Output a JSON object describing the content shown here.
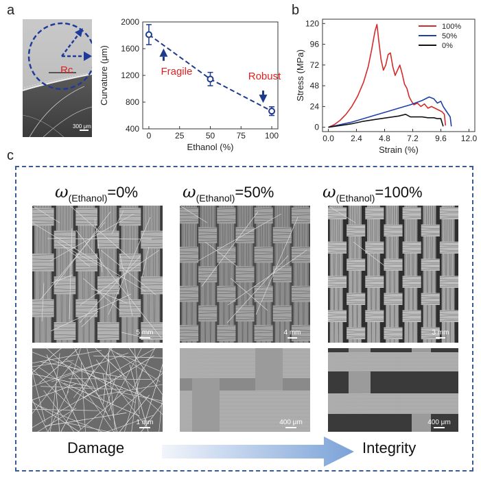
{
  "panels": {
    "a": "a",
    "b": "b",
    "c": "c"
  },
  "micrograph_a": {
    "rc_label": "Rc",
    "scale_bar": "300 μm"
  },
  "chart_data": [
    {
      "type": "scatter",
      "id": "curvature",
      "xlabel": "Ethanol (%)",
      "ylabel": "Curvature (μm)",
      "xlim": [
        -5,
        105
      ],
      "ylim": [
        400,
        2000
      ],
      "xticks": [
        "0",
        "25",
        "50",
        "75",
        "100"
      ],
      "yticks": [
        "400",
        "800",
        "1200",
        "1600",
        "2000"
      ],
      "points": [
        {
          "x": 0,
          "y": 1810,
          "err": 150
        },
        {
          "x": 50,
          "y": 1145,
          "err": 100
        },
        {
          "x": 100,
          "y": 665,
          "err": 65
        }
      ],
      "trend": [
        [
          0,
          1810
        ],
        [
          50,
          1145
        ],
        [
          100,
          665
        ]
      ],
      "annotations": {
        "fragile": "Fragile",
        "robust": "Robust"
      },
      "color": "#1e3a8a"
    },
    {
      "type": "line",
      "id": "stress-strain",
      "xlabel": "Strain (%)",
      "ylabel": "Stress (MPa)",
      "xlim": [
        -0.5,
        12.5
      ],
      "ylim": [
        -5,
        125
      ],
      "xticks": [
        "0.0",
        "2.4",
        "4.8",
        "7.2",
        "9.6",
        "12.0"
      ],
      "yticks": [
        "0",
        "24",
        "48",
        "72",
        "96",
        "120"
      ],
      "legend_position": "top-right",
      "series": [
        {
          "name": "100%",
          "color": "#d42a2a",
          "points": [
            [
              0,
              0
            ],
            [
              0.5,
              3
            ],
            [
              1,
              8
            ],
            [
              1.5,
              15
            ],
            [
              2,
              24
            ],
            [
              2.5,
              36
            ],
            [
              3,
              52
            ],
            [
              3.4,
              70
            ],
            [
              3.7,
              90
            ],
            [
              3.9,
              105
            ],
            [
              4.0,
              112
            ],
            [
              4.15,
              119
            ],
            [
              4.3,
              100
            ],
            [
              4.5,
              78
            ],
            [
              4.7,
              66
            ],
            [
              4.9,
              72
            ],
            [
              5.1,
              84
            ],
            [
              5.3,
              86
            ],
            [
              5.5,
              70
            ],
            [
              5.7,
              60
            ],
            [
              5.9,
              66
            ],
            [
              6.1,
              72
            ],
            [
              6.3,
              62
            ],
            [
              6.5,
              50
            ],
            [
              6.7,
              45
            ],
            [
              6.9,
              35
            ],
            [
              7.1,
              30
            ],
            [
              7.3,
              26
            ],
            [
              7.6,
              28
            ],
            [
              7.9,
              24
            ],
            [
              8.2,
              27
            ],
            [
              8.5,
              22
            ],
            [
              8.8,
              24
            ],
            [
              9.1,
              22
            ],
            [
              9.4,
              20
            ],
            [
              9.7,
              18
            ],
            [
              9.9,
              15
            ],
            [
              10.0,
              2
            ]
          ]
        },
        {
          "name": "50%",
          "color": "#1f3ea8",
          "points": [
            [
              0,
              0
            ],
            [
              1,
              3
            ],
            [
              2,
              6
            ],
            [
              3,
              10
            ],
            [
              4,
              14
            ],
            [
              5,
              18
            ],
            [
              6,
              22
            ],
            [
              7,
              26
            ],
            [
              8,
              31
            ],
            [
              8.6,
              35
            ],
            [
              9.0,
              33
            ],
            [
              9.3,
              28
            ],
            [
              9.6,
              30
            ],
            [
              9.8,
              24
            ],
            [
              10.0,
              20
            ],
            [
              10.2,
              16
            ],
            [
              10.4,
              12
            ],
            [
              10.5,
              1
            ]
          ]
        },
        {
          "name": "0%",
          "color": "#111111",
          "points": [
            [
              0,
              0
            ],
            [
              1,
              2
            ],
            [
              2,
              4
            ],
            [
              3,
              7
            ],
            [
              4,
              9
            ],
            [
              5,
              11
            ],
            [
              6,
              13
            ],
            [
              6.6,
              15
            ],
            [
              7.0,
              12
            ],
            [
              7.5,
              12
            ],
            [
              8.0,
              12
            ],
            [
              8.5,
              11
            ],
            [
              9.0,
              11
            ],
            [
              9.3,
              10
            ],
            [
              9.6,
              10
            ],
            [
              9.8,
              1
            ]
          ]
        }
      ]
    }
  ],
  "panel_c": {
    "titles": [
      {
        "omega": "ω",
        "sub": "(Ethanol)",
        "value": "=0%"
      },
      {
        "omega": "ω",
        "sub": "(Ethanol)",
        "value": "=50%"
      },
      {
        "omega": "ω",
        "sub": "(Ethanol)",
        "value": "=100%"
      }
    ],
    "top_scales": [
      "5 mm",
      "4 mm",
      "3 mm"
    ],
    "bottom_scales": [
      "1 mm",
      "400 μm",
      "400 μm"
    ],
    "damage": "Damage",
    "integrity": "Integrity"
  }
}
